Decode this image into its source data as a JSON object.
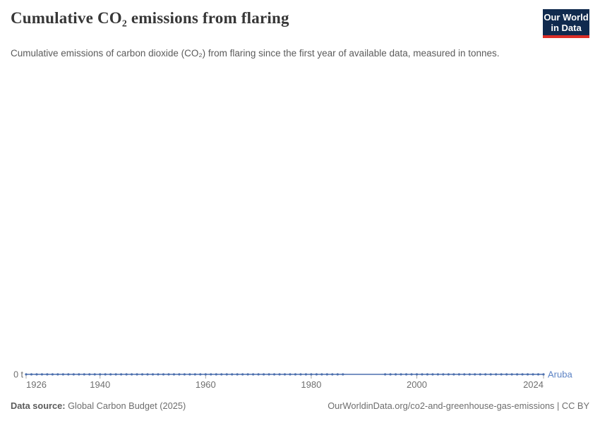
{
  "header": {
    "title": "Cumulative CO₂ emissions from flaring",
    "subtitle": "Cumulative emissions of carbon dioxide (CO₂) from flaring since the first year of available data, measured in tonnes.",
    "logo": {
      "line1": "Our World",
      "line2": "in Data"
    }
  },
  "footer": {
    "source_label": "Data source:",
    "source_value": " Global Carbon Budget (2025)",
    "license_text": "OurWorldinData.org/co2-and-greenhouse-gas-emissions | CC BY"
  },
  "colors": {
    "line_blue": "#4c6fad",
    "entity_label_blue": "#5b82c4",
    "tick_gray": "#a8a8a8",
    "tick_label_gray": "#6f6f6f",
    "logo_navy": "#102a4e",
    "logo_red": "#dc2e27"
  },
  "chart_data": {
    "type": "line",
    "title": "Cumulative CO₂ emissions from flaring",
    "subtitle": "Cumulative emissions of carbon dioxide (CO₂) from flaring since the first year of available data, measured in tonnes.",
    "xlabel": "",
    "ylabel": "",
    "unit": "t",
    "grid": false,
    "x_range": [
      1926,
      2024
    ],
    "x_ticks": [
      1926,
      1940,
      1960,
      1980,
      2000,
      2024
    ],
    "y_axis_zero_label": "0 t",
    "series": [
      {
        "name": "Aruba",
        "constant_value": 0,
        "data_year_segments": [
          [
            1926,
            1986
          ],
          [
            1994,
            2024
          ]
        ],
        "note": "All plotted values are 0 tonnes; circular markers are drawn for each year with data (1926–1986 and 1994–2024) and the flat zero line is continuous across the 1987–1993 gap."
      }
    ],
    "legend_position": "end-of-line entity label"
  }
}
